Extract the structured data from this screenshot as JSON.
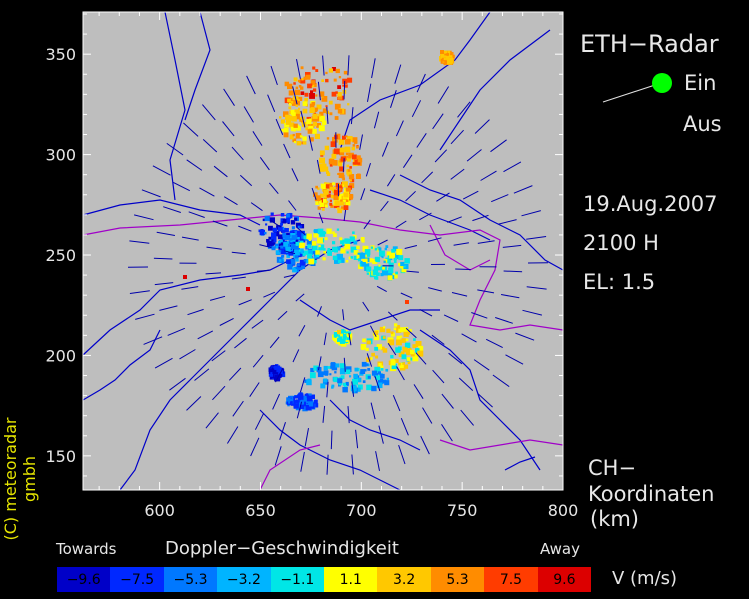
{
  "title": "ETH−Radar",
  "status": {
    "on": "Ein",
    "off": "Aus",
    "on_color": "#00ff00"
  },
  "date": "19.Aug.2007",
  "time": "2100 H",
  "elevation": "EL:  1.5",
  "coord_label": {
    "line1": "CH−",
    "line2": "Koordinaten",
    "line3": "(km)"
  },
  "credit": "(C) meteoradar gmbh",
  "legend": {
    "towards": "Towards",
    "title": "Doppler−Geschwindigkeit",
    "away": "Away",
    "unit": "V  (m/s)",
    "bins": [
      {
        "label": "−9.6",
        "color": "#0000c8"
      },
      {
        "label": "−7.5",
        "color": "#0028ff"
      },
      {
        "label": "−5.3",
        "color": "#0078ff"
      },
      {
        "label": "−3.2",
        "color": "#00b4ff"
      },
      {
        "label": "−1.1",
        "color": "#00e6e6"
      },
      {
        "label": "1.1",
        "color": "#ffff00"
      },
      {
        "label": "3.2",
        "color": "#ffc800"
      },
      {
        "label": "5.3",
        "color": "#ff8c00"
      },
      {
        "label": "7.5",
        "color": "#ff3c00"
      },
      {
        "label": "9.6",
        "color": "#dc0000"
      }
    ]
  },
  "axes": {
    "x_ticks": [
      "600",
      "650",
      "700",
      "750",
      "800"
    ],
    "y_ticks": [
      "350",
      "300",
      "250",
      "200",
      "150"
    ],
    "x_range": [
      562,
      800
    ],
    "y_range": [
      133,
      371
    ]
  },
  "colors": {
    "map_bg": "#bebebe",
    "lakes": "#0000c8",
    "borders": "#a000c8",
    "axis": "#ffffff"
  }
}
